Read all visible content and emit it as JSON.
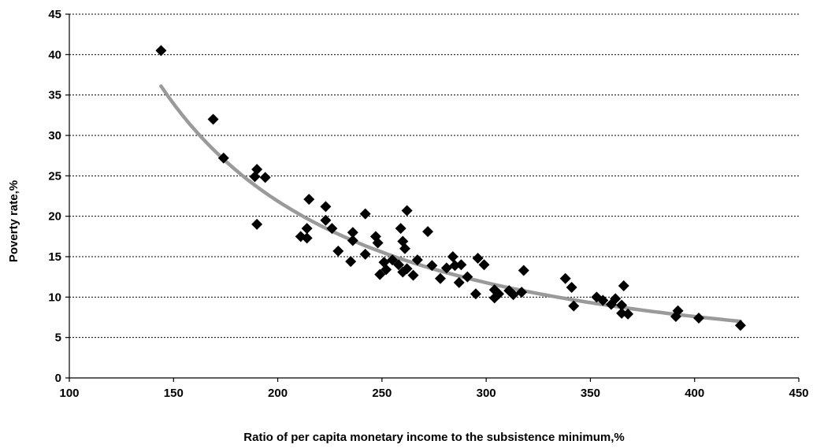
{
  "chart_data": {
    "type": "scatter",
    "title": "",
    "xlabel": "Ratio of per capita monetary income to the subsistence minimum,%",
    "ylabel": "Poverty rate,%",
    "xlim": [
      100,
      450
    ],
    "ylim": [
      0,
      45
    ],
    "x_ticks": [
      "100",
      "150",
      "200",
      "250",
      "300",
      "350",
      "400",
      "450"
    ],
    "y_ticks": [
      "0",
      "5",
      "10",
      "15",
      "20",
      "25",
      "30",
      "35",
      "40",
      "45"
    ],
    "grid": "horizontal",
    "points": [
      [
        144,
        40.5
      ],
      [
        169,
        32.0
      ],
      [
        174,
        27.2
      ],
      [
        190,
        25.8
      ],
      [
        189,
        24.9
      ],
      [
        194,
        24.8
      ],
      [
        190,
        19.0
      ],
      [
        215,
        22.1
      ],
      [
        223,
        21.2
      ],
      [
        223,
        19.5
      ],
      [
        226,
        18.5
      ],
      [
        211,
        17.5
      ],
      [
        214,
        18.5
      ],
      [
        214,
        17.3
      ],
      [
        229,
        15.7
      ],
      [
        236,
        18.0
      ],
      [
        236,
        17.0
      ],
      [
        235,
        14.4
      ],
      [
        242,
        20.3
      ],
      [
        242,
        15.3
      ],
      [
        247,
        17.5
      ],
      [
        248,
        16.7
      ],
      [
        249,
        12.8
      ],
      [
        251,
        14.3
      ],
      [
        252,
        13.4
      ],
      [
        255,
        14.6
      ],
      [
        258,
        14.0
      ],
      [
        259,
        18.5
      ],
      [
        260,
        16.9
      ],
      [
        261,
        16.0
      ],
      [
        262,
        20.7
      ],
      [
        260,
        13.1
      ],
      [
        262,
        13.5
      ],
      [
        265,
        12.7
      ],
      [
        267,
        14.6
      ],
      [
        272,
        18.1
      ],
      [
        274,
        13.9
      ],
      [
        278,
        12.3
      ],
      [
        281,
        13.6
      ],
      [
        284,
        15.0
      ],
      [
        285,
        13.9
      ],
      [
        287,
        11.8
      ],
      [
        288,
        14.0
      ],
      [
        291,
        12.5
      ],
      [
        295,
        10.4
      ],
      [
        296,
        14.8
      ],
      [
        299,
        14.0
      ],
      [
        304,
        9.9
      ],
      [
        304,
        10.9
      ],
      [
        306,
        10.4
      ],
      [
        311,
        10.8
      ],
      [
        313,
        10.3
      ],
      [
        317,
        10.6
      ],
      [
        318,
        13.3
      ],
      [
        338,
        12.3
      ],
      [
        341,
        11.2
      ],
      [
        342,
        8.9
      ],
      [
        353,
        10.0
      ],
      [
        356,
        9.6
      ],
      [
        360,
        9.1
      ],
      [
        362,
        9.8
      ],
      [
        365,
        9.0
      ],
      [
        366,
        11.4
      ],
      [
        365,
        8.0
      ],
      [
        368,
        7.9
      ],
      [
        391,
        7.6
      ],
      [
        392,
        8.3
      ],
      [
        402,
        7.4
      ],
      [
        422,
        6.5
      ]
    ],
    "trendline": {
      "type": "power",
      "x_range": [
        144,
        422
      ],
      "points": [
        [
          144,
          36.1
        ],
        [
          160,
          31.5
        ],
        [
          180,
          26.9
        ],
        [
          200,
          23.2
        ],
        [
          225,
          19.8
        ],
        [
          250,
          17.2
        ],
        [
          275,
          15.1
        ],
        [
          300,
          13.4
        ],
        [
          325,
          11.9
        ],
        [
          350,
          10.7
        ],
        [
          375,
          9.6
        ],
        [
          400,
          8.7
        ],
        [
          422,
          7.0
        ]
      ]
    }
  }
}
